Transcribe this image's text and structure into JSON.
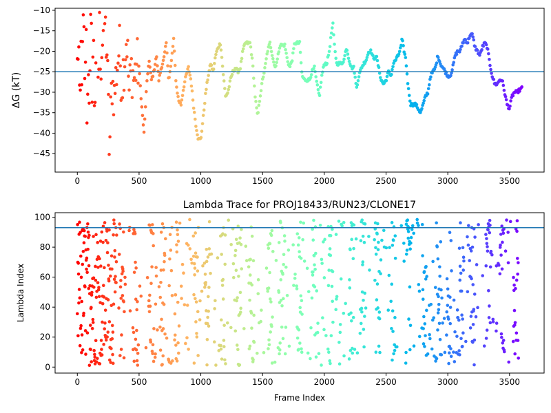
{
  "chart_data": [
    {
      "type": "scatter",
      "title": "",
      "xlabel": "",
      "ylabel": "ΔG (kT)",
      "xlim": [
        -180,
        3780
      ],
      "ylim": [
        -49.5,
        -9.5
      ],
      "xticks": [
        0,
        500,
        1000,
        1500,
        2000,
        2500,
        3000,
        3500
      ],
      "yticks": [
        -45,
        -40,
        -35,
        -30,
        -25,
        -20,
        -15,
        -10
      ],
      "hline": -25,
      "hline_color": "#1f77b4",
      "colormap": "rainbow (red at frame 0 → violet at frame 3600)",
      "grid": false,
      "anchors": [
        [
          0,
          -24
        ],
        [
          10,
          -16
        ],
        [
          20,
          -40
        ],
        [
          30,
          -20
        ],
        [
          40,
          -26
        ],
        [
          50,
          -11
        ],
        [
          60,
          -30
        ],
        [
          70,
          -14
        ],
        [
          80,
          -38
        ],
        [
          90,
          -22
        ],
        [
          100,
          -33
        ],
        [
          110,
          -12
        ],
        [
          120,
          -27
        ],
        [
          130,
          -17
        ],
        [
          140,
          -35
        ],
        [
          150,
          -21
        ],
        [
          160,
          -10
        ],
        [
          170,
          -29
        ],
        [
          180,
          -15
        ],
        [
          190,
          -23
        ],
        [
          200,
          -18
        ],
        [
          220,
          -12
        ],
        [
          240,
          -20
        ],
        [
          260,
          -45
        ],
        [
          270,
          -36
        ],
        [
          280,
          -27
        ],
        [
          300,
          -31
        ],
        [
          320,
          -24
        ],
        [
          340,
          -19
        ],
        [
          360,
          -28
        ],
        [
          380,
          -22
        ],
        [
          400,
          -16
        ],
        [
          420,
          -30
        ],
        [
          440,
          -24
        ],
        [
          460,
          -27
        ],
        [
          480,
          -23
        ],
        [
          500,
          -24
        ],
        [
          520,
          -33
        ],
        [
          540,
          -40
        ],
        [
          560,
          -29
        ],
        [
          580,
          -22
        ],
        [
          600,
          -27
        ],
        [
          620,
          -25
        ],
        [
          640,
          -21
        ],
        [
          660,
          -27
        ],
        [
          680,
          -24
        ],
        [
          700,
          -22
        ],
        [
          720,
          -18
        ],
        [
          740,
          -27
        ],
        [
          760,
          -23
        ],
        [
          780,
          -17
        ],
        [
          800,
          -28
        ],
        [
          820,
          -32
        ],
        [
          840,
          -33
        ],
        [
          860,
          -29
        ],
        [
          880,
          -26
        ],
        [
          900,
          -24
        ],
        [
          920,
          -27
        ],
        [
          940,
          -33
        ],
        [
          960,
          -38
        ],
        [
          980,
          -41.5
        ],
        [
          1000,
          -41.5
        ],
        [
          1020,
          -36
        ],
        [
          1040,
          -30
        ],
        [
          1060,
          -26
        ],
        [
          1080,
          -23
        ],
        [
          1100,
          -25
        ],
        [
          1120,
          -21
        ],
        [
          1140,
          -19
        ],
        [
          1160,
          -18
        ],
        [
          1180,
          -25
        ],
        [
          1200,
          -31
        ],
        [
          1220,
          -30
        ],
        [
          1240,
          -27
        ],
        [
          1260,
          -25
        ],
        [
          1280,
          -24
        ],
        [
          1300,
          -25
        ],
        [
          1320,
          -24
        ],
        [
          1340,
          -20
        ],
        [
          1360,
          -18
        ],
        [
          1380,
          -18
        ],
        [
          1400,
          -18
        ],
        [
          1420,
          -23
        ],
        [
          1440,
          -31
        ],
        [
          1460,
          -36
        ],
        [
          1480,
          -31
        ],
        [
          1500,
          -27
        ],
        [
          1520,
          -24
        ],
        [
          1540,
          -20
        ],
        [
          1560,
          -18
        ],
        [
          1580,
          -21
        ],
        [
          1600,
          -24
        ],
        [
          1620,
          -22
        ],
        [
          1640,
          -18.5
        ],
        [
          1660,
          -18.5
        ],
        [
          1680,
          -18.5
        ],
        [
          1700,
          -22
        ],
        [
          1720,
          -24
        ],
        [
          1740,
          -22
        ],
        [
          1760,
          -18
        ],
        [
          1780,
          -18
        ],
        [
          1800,
          -18
        ],
        [
          1820,
          -26
        ],
        [
          1840,
          -27
        ],
        [
          1860,
          -27
        ],
        [
          1880,
          -27
        ],
        [
          1900,
          -25
        ],
        [
          1920,
          -24
        ],
        [
          1940,
          -28
        ],
        [
          1960,
          -31
        ],
        [
          1980,
          -26
        ],
        [
          2000,
          -23
        ],
        [
          2020,
          -23
        ],
        [
          2040,
          -20
        ],
        [
          2060,
          -15
        ],
        [
          2070,
          -13.5
        ],
        [
          2080,
          -18
        ],
        [
          2100,
          -23
        ],
        [
          2120,
          -23
        ],
        [
          2140,
          -23
        ],
        [
          2160,
          -22
        ],
        [
          2180,
          -19
        ],
        [
          2200,
          -22
        ],
        [
          2220,
          -24
        ],
        [
          2240,
          -24
        ],
        [
          2260,
          -29
        ],
        [
          2280,
          -26
        ],
        [
          2300,
          -24
        ],
        [
          2320,
          -23
        ],
        [
          2340,
          -22
        ],
        [
          2360,
          -20
        ],
        [
          2380,
          -20
        ],
        [
          2400,
          -22
        ],
        [
          2420,
          -21
        ],
        [
          2440,
          -24
        ],
        [
          2460,
          -27
        ],
        [
          2480,
          -28
        ],
        [
          2500,
          -27
        ],
        [
          2520,
          -25
        ],
        [
          2540,
          -26
        ],
        [
          2560,
          -23
        ],
        [
          2580,
          -22
        ],
        [
          2600,
          -21
        ],
        [
          2620,
          -19
        ],
        [
          2630,
          -17
        ],
        [
          2640,
          -19
        ],
        [
          2660,
          -22
        ],
        [
          2680,
          -29
        ],
        [
          2700,
          -33
        ],
        [
          2720,
          -33
        ],
        [
          2740,
          -33
        ],
        [
          2760,
          -34
        ],
        [
          2780,
          -35
        ],
        [
          2800,
          -33
        ],
        [
          2820,
          -31
        ],
        [
          2840,
          -30
        ],
        [
          2860,
          -26
        ],
        [
          2880,
          -25
        ],
        [
          2900,
          -24
        ],
        [
          2920,
          -21
        ],
        [
          2940,
          -23
        ],
        [
          2960,
          -24
        ],
        [
          2980,
          -25
        ],
        [
          3000,
          -26
        ],
        [
          3020,
          -26
        ],
        [
          3040,
          -24
        ],
        [
          3060,
          -21
        ],
        [
          3080,
          -20
        ],
        [
          3100,
          -20
        ],
        [
          3120,
          -18
        ],
        [
          3140,
          -17
        ],
        [
          3160,
          -18
        ],
        [
          3180,
          -16
        ],
        [
          3200,
          -16
        ],
        [
          3220,
          -19
        ],
        [
          3240,
          -20
        ],
        [
          3260,
          -21
        ],
        [
          3280,
          -19
        ],
        [
          3300,
          -18
        ],
        [
          3320,
          -19
        ],
        [
          3340,
          -23
        ],
        [
          3360,
          -26
        ],
        [
          3380,
          -28
        ],
        [
          3400,
          -28
        ],
        [
          3420,
          -27
        ],
        [
          3440,
          -27
        ],
        [
          3460,
          -30
        ],
        [
          3480,
          -33
        ],
        [
          3500,
          -34
        ],
        [
          3520,
          -31
        ],
        [
          3540,
          -30
        ],
        [
          3560,
          -30
        ],
        [
          3580,
          -29.5
        ],
        [
          3600,
          -29
        ]
      ]
    },
    {
      "type": "scatter",
      "title": "Lambda Trace for PROJ18433/RUN23/CLONE17",
      "xlabel": "Frame Index",
      "ylabel": "Lambda Index",
      "xlim": [
        -180,
        3780
      ],
      "ylim": [
        -4,
        103
      ],
      "xticks": [
        0,
        500,
        1000,
        1500,
        2000,
        2500,
        3000,
        3500
      ],
      "yticks": [
        0,
        20,
        40,
        60,
        80,
        100
      ],
      "hline": 93,
      "hline_color": "#1f77b4",
      "colormap": "rainbow (red at frame 0 → violet at frame 3600)",
      "grid": false,
      "dense_bands_x": [
        10,
        120,
        230,
        360,
        470,
        600,
        690,
        810,
        960,
        1050,
        1180,
        1310,
        1410,
        1560,
        1650,
        1800,
        1920,
        2050,
        2220,
        2310,
        2430,
        2560,
        2680,
        2810,
        2920,
        3010,
        3110,
        3200,
        3330,
        3440,
        3550
      ],
      "frame_count": 3600
    }
  ]
}
